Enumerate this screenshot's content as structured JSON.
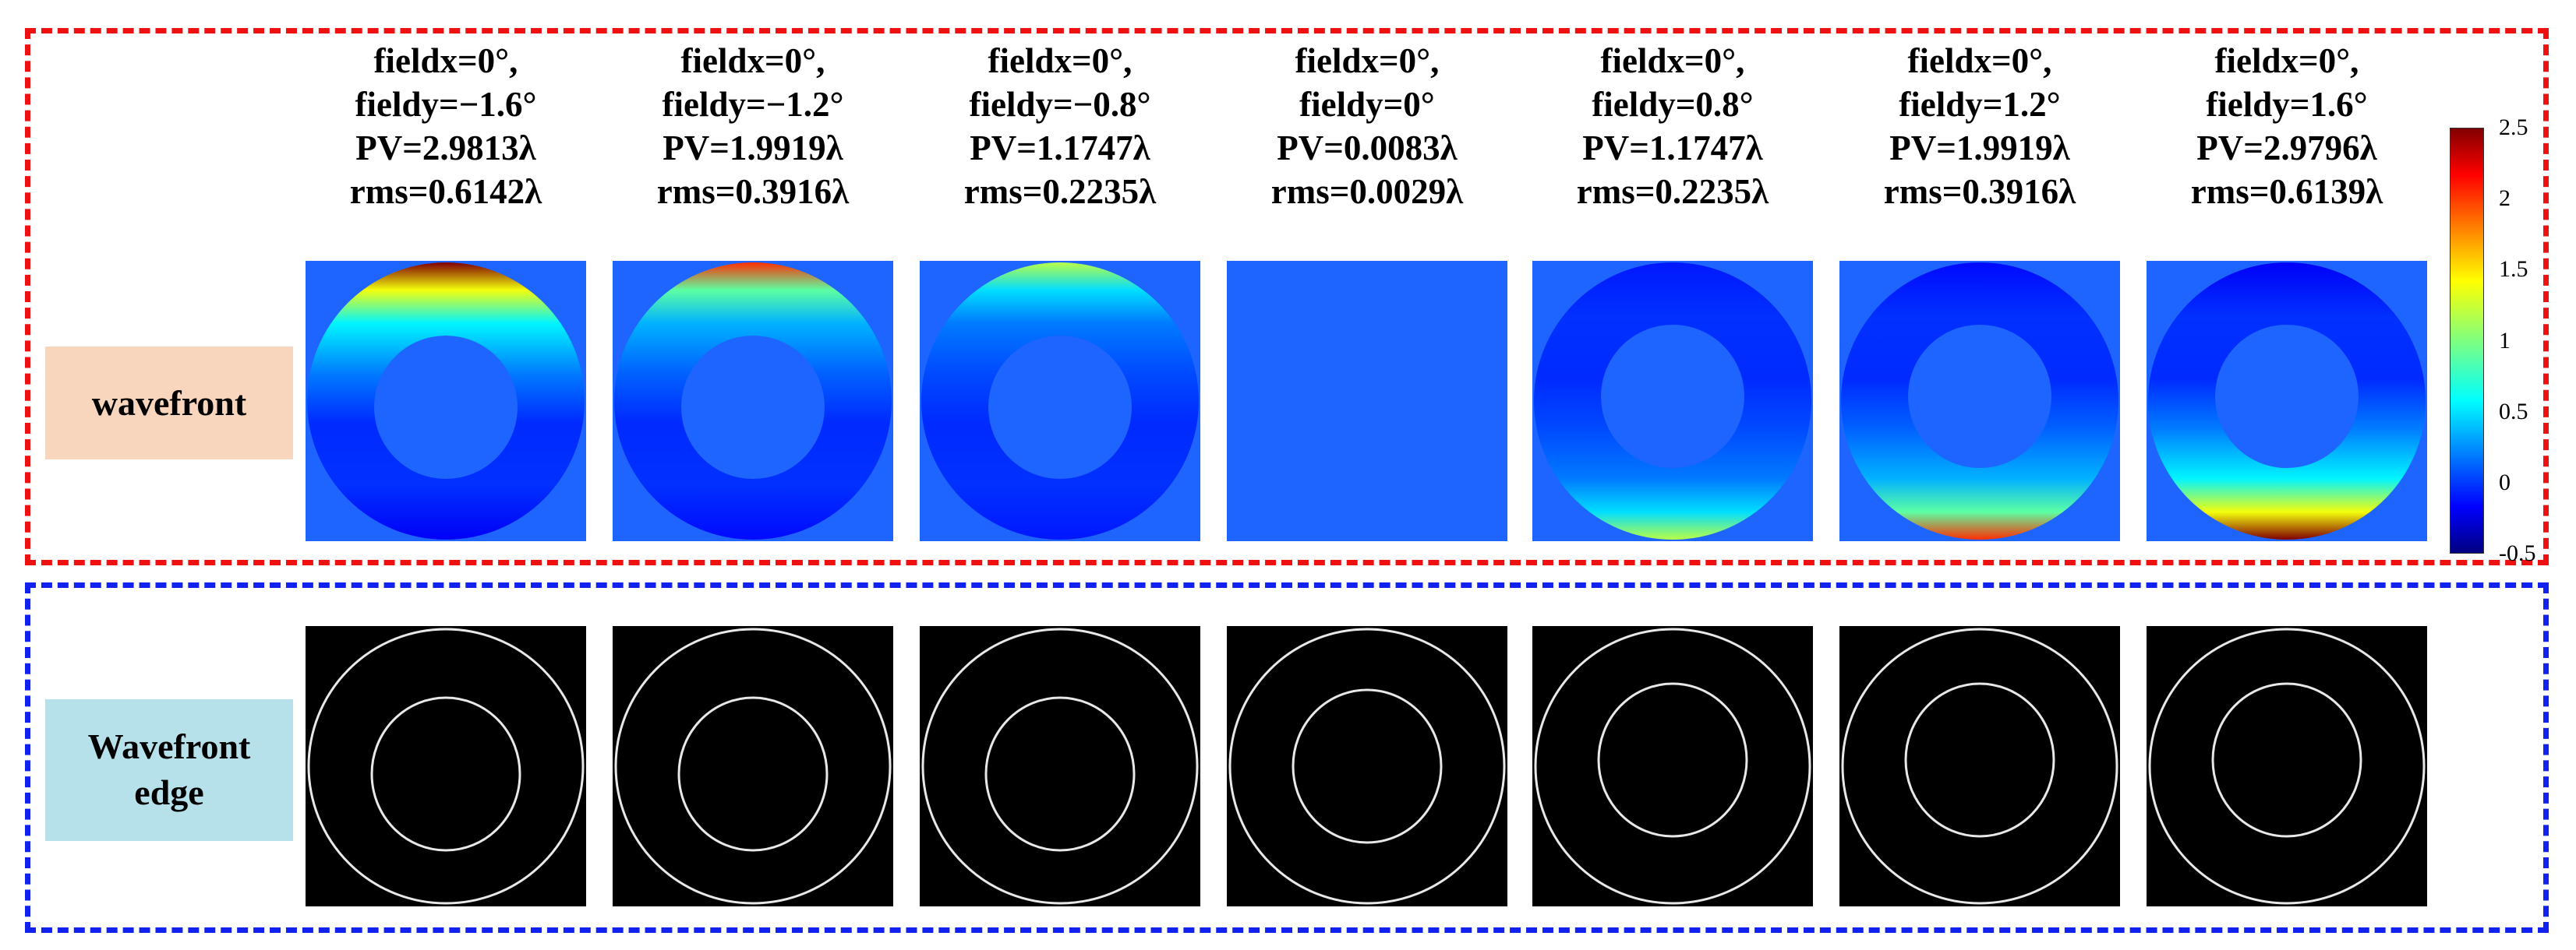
{
  "rows": {
    "wavefront_label": "wavefront",
    "edge_label_line1": "Wavefront",
    "edge_label_line2": "edge"
  },
  "panels": [
    {
      "fieldx": "fieldx=0°,",
      "fieldy": "fieldy=−1.6°",
      "pv": "PV=2.9813λ",
      "rms": "rms=0.6142λ",
      "tilt": -1.0,
      "magnitude": 2.98
    },
    {
      "fieldx": "fieldx=0°,",
      "fieldy": "fieldy=−1.2°",
      "pv": "PV=1.9919λ",
      "rms": "rms=0.3916λ",
      "tilt": -1.0,
      "magnitude": 1.99
    },
    {
      "fieldx": "fieldx=0°,",
      "fieldy": "fieldy=−0.8°",
      "pv": "PV=1.1747λ",
      "rms": "rms=0.2235λ",
      "tilt": -1.0,
      "magnitude": 1.17
    },
    {
      "fieldx": "fieldx=0°,",
      "fieldy": "fieldy=0°",
      "pv": "PV=0.0083λ",
      "rms": "rms=0.0029λ",
      "tilt": 0.0,
      "magnitude": 0.0
    },
    {
      "fieldx": "fieldx=0°,",
      "fieldy": "fieldy=0.8°",
      "pv": "PV=1.1747λ",
      "rms": "rms=0.2235λ",
      "tilt": 1.0,
      "magnitude": 1.17
    },
    {
      "fieldx": "fieldx=0°,",
      "fieldy": "fieldy=1.2°",
      "pv": "PV=1.9919λ",
      "rms": "rms=0.3916λ",
      "tilt": 1.0,
      "magnitude": 1.99
    },
    {
      "fieldx": "fieldx=0°,",
      "fieldy": "fieldy=1.6°",
      "pv": "PV=2.9796λ",
      "rms": "rms=0.6139λ",
      "tilt": 1.0,
      "magnitude": 2.98
    }
  ],
  "colorbar": {
    "min": -0.5,
    "max": 2.5,
    "ticks": [
      "2.5",
      "2",
      "1.5",
      "1",
      "0.5",
      "0",
      "-0.5"
    ],
    "colormap": "jet"
  },
  "colors": {
    "red_frame": "#ee1111",
    "blue_frame": "#1122ee",
    "wavefront_label_bg": "#f8d5bd",
    "edge_label_bg": "#b7e1ea",
    "background_blue": "#1e64ff"
  }
}
